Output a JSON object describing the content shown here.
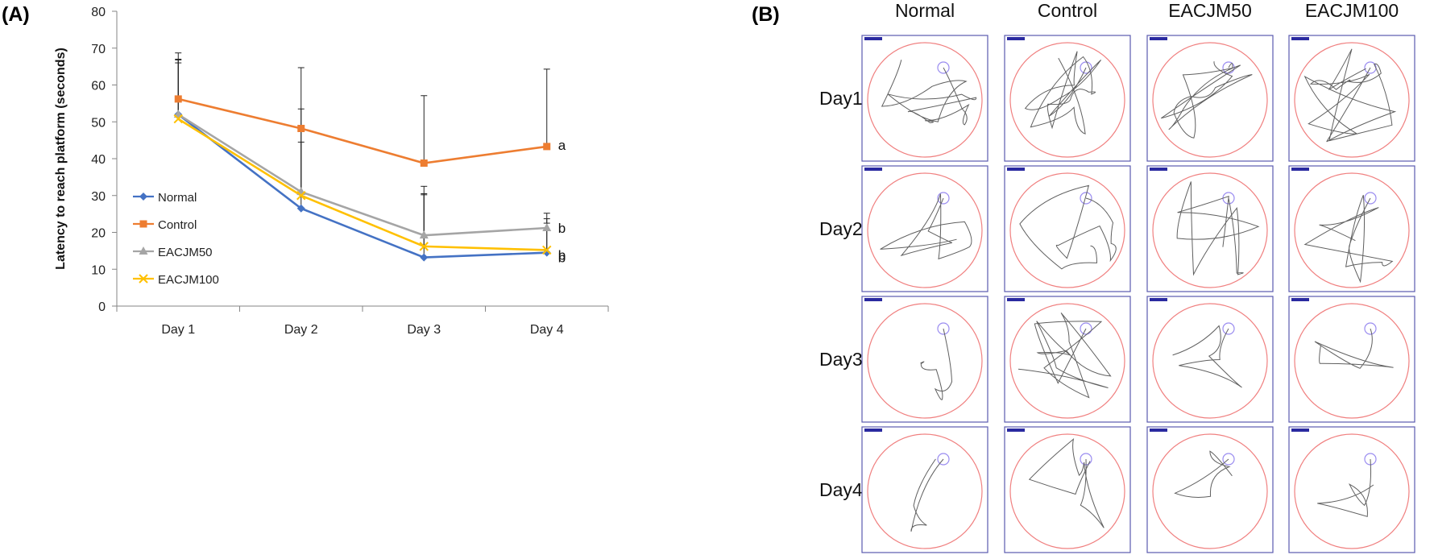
{
  "panel_a_label": "(A)",
  "panel_b_label": "(B)",
  "chart_data": {
    "type": "line",
    "title": "",
    "xlabel": "",
    "ylabel": "Latency to reach platform (seconds)",
    "categories": [
      "Day 1",
      "Day 2",
      "Day 3",
      "Day 4"
    ],
    "ylim": [
      0,
      80
    ],
    "yticks": [
      0,
      10,
      20,
      30,
      40,
      50,
      60,
      70,
      80
    ],
    "legend_position": "left-bottom",
    "series": [
      {
        "name": "Normal",
        "color": "#4472C4",
        "marker": "diamond",
        "values": [
          52,
          26.5,
          13.2,
          14.5
        ],
        "errors": [
          14,
          18,
          17,
          8
        ]
      },
      {
        "name": "Control",
        "color": "#ED7D31",
        "marker": "square",
        "values": [
          56.2,
          48.2,
          38.8,
          43.3
        ],
        "errors": [
          12.5,
          16.5,
          18.3,
          21
        ]
      },
      {
        "name": "EACJM50",
        "color": "#A5A5A5",
        "marker": "triangle",
        "values": [
          52,
          31,
          19.2,
          21.2
        ],
        "errors": [
          15,
          22.5,
          13.3,
          4
        ]
      },
      {
        "name": "EACJM100",
        "color": "#FFC000",
        "marker": "x",
        "values": [
          50.8,
          30,
          16.2,
          15.2
        ],
        "errors": [
          16,
          19,
          14.3,
          8.5
        ]
      }
    ],
    "annotations": [
      {
        "category": "Day 4",
        "series": "Control",
        "text": "a"
      },
      {
        "category": "Day 4",
        "series": "EACJM50",
        "text": "b"
      },
      {
        "category": "Day 4",
        "series": "EACJM100",
        "text": "b"
      },
      {
        "category": "Day 4",
        "series": "Normal",
        "text": "b"
      }
    ]
  },
  "tracks": {
    "columns": [
      "Normal",
      "Control",
      "EACJM50",
      "EACJM100"
    ],
    "rows": [
      "Day1",
      "Day2",
      "Day3",
      "Day4"
    ],
    "pool_color": "#F08080",
    "platform_color": "#9A8CF0",
    "frame_color": "#5B5BAF",
    "path_color": "#5F5F5F"
  }
}
